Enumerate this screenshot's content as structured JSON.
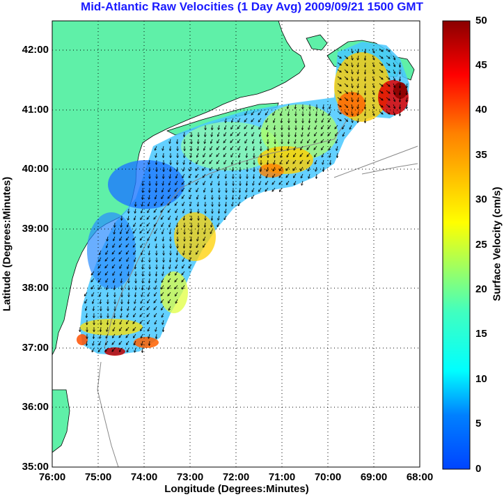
{
  "title": "Mid-Atlantic Raw Velocities (1 Day Avg) 2009/09/21 1500 GMT",
  "map": {
    "x_label": "Longitude (Degrees:Minutes)",
    "y_label": "Latitude (Degrees:Minutes)",
    "lon_ticks": [
      "76:00",
      "75:00",
      "74:00",
      "73:00",
      "72:00",
      "71:00",
      "70:00",
      "69:00",
      "68:00"
    ],
    "lat_ticks": [
      "42:00",
      "41:00",
      "40:00",
      "39:00",
      "38:00",
      "37:00",
      "36:00",
      "35:00"
    ],
    "lon_range": [
      -76,
      -68
    ],
    "lat_range": [
      35,
      42.5
    ],
    "land_color": "#5ff0a8",
    "ocean_color": "#ffffff"
  },
  "colorbar": {
    "label": "Surface Velocity (cm/s)",
    "ticks": [
      "50",
      "45",
      "40",
      "35",
      "30",
      "25",
      "20",
      "15",
      "10",
      "5",
      "0"
    ],
    "range": [
      0,
      50
    ],
    "colormap": "jet"
  }
}
